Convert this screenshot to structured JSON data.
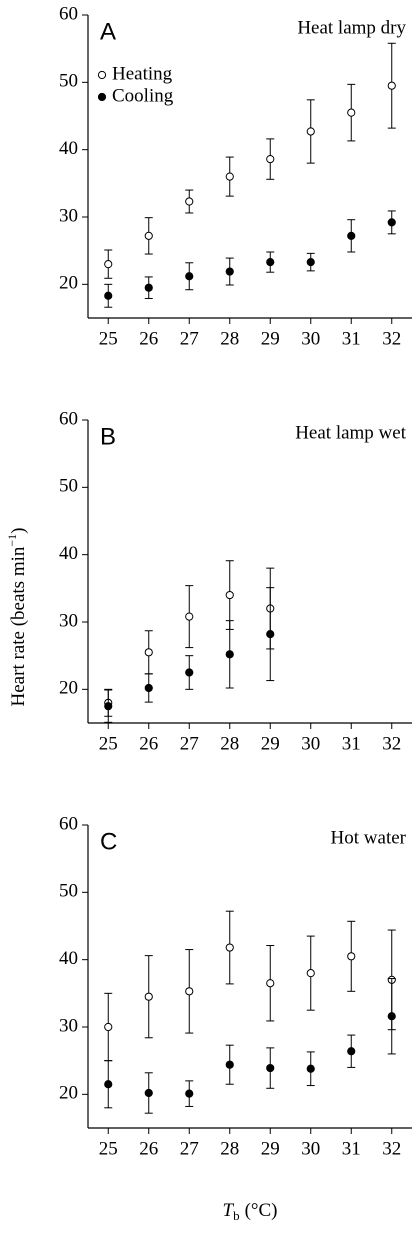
{
  "chart_data": [
    {
      "type": "scatter",
      "panel": "A",
      "title": "Heat lamp dry",
      "x": [
        25,
        26,
        27,
        28,
        29,
        30,
        31,
        32
      ],
      "xlim": [
        24.5,
        32.5
      ],
      "xticks": [
        25,
        26,
        27,
        28,
        29,
        30,
        31,
        32
      ],
      "ylim": [
        15,
        60
      ],
      "yticks": [
        20,
        30,
        40,
        50,
        60
      ],
      "legend": "upper left",
      "series": [
        {
          "name": "Heating",
          "marker": "open",
          "color": "#000000",
          "values": [
            23.0,
            27.2,
            32.3,
            36.0,
            38.6,
            42.7,
            45.5,
            49.5
          ],
          "errors": [
            2.1,
            2.7,
            1.7,
            2.9,
            3.0,
            4.7,
            4.2,
            6.3
          ]
        },
        {
          "name": "Cooling",
          "marker": "filled",
          "color": "#000000",
          "values": [
            18.3,
            19.5,
            21.2,
            21.9,
            23.3,
            23.3,
            27.2,
            29.2
          ],
          "errors": [
            1.7,
            1.6,
            2.0,
            2.0,
            1.5,
            1.3,
            2.4,
            1.7
          ]
        }
      ]
    },
    {
      "type": "scatter",
      "panel": "B",
      "title": "Heat lamp wet",
      "ylabel": {
        "text": "Heart rate (beats min",
        "superscript": "−1",
        "close": ")"
      },
      "x": [
        25,
        26,
        27,
        28,
        29,
        30,
        31,
        32
      ],
      "xlim": [
        24.5,
        32.5
      ],
      "xticks": [
        25,
        26,
        27,
        28,
        29,
        30,
        31,
        32
      ],
      "ylim": [
        15,
        60
      ],
      "yticks": [
        20,
        30,
        40,
        50,
        60
      ],
      "series": [
        {
          "marker": "open",
          "color": "#000000",
          "values": [
            18.0,
            25.5,
            30.8,
            34.0,
            32.0,
            null,
            null,
            null
          ],
          "errors": [
            2.0,
            3.2,
            4.6,
            5.1,
            6.0,
            null,
            null,
            null
          ]
        },
        {
          "marker": "filled",
          "color": "#000000",
          "values": [
            17.5,
            20.2,
            22.5,
            25.2,
            28.2,
            null,
            null,
            null
          ],
          "errors": [
            2.4,
            2.1,
            2.5,
            5.0,
            6.9,
            null,
            null,
            null
          ]
        }
      ]
    },
    {
      "type": "scatter",
      "panel": "C",
      "title": "Hot water",
      "xlabel": {
        "symbol": "T",
        "subscript": "b",
        "unit": "(°C)"
      },
      "x": [
        25,
        26,
        27,
        28,
        29,
        30,
        31,
        32
      ],
      "xlim": [
        24.5,
        32.5
      ],
      "xticks": [
        25,
        26,
        27,
        28,
        29,
        30,
        31,
        32
      ],
      "ylim": [
        15,
        60
      ],
      "yticks": [
        20,
        30,
        40,
        50,
        60
      ],
      "series": [
        {
          "marker": "open",
          "color": "#000000",
          "values": [
            30.0,
            34.5,
            35.3,
            41.8,
            36.5,
            38.0,
            40.5,
            37.0
          ],
          "errors": [
            5.0,
            6.1,
            6.2,
            5.4,
            5.6,
            5.5,
            5.2,
            7.4
          ]
        },
        {
          "marker": "filled",
          "color": "#000000",
          "values": [
            21.5,
            20.2,
            20.1,
            24.4,
            23.9,
            23.8,
            26.4,
            31.6
          ],
          "errors": [
            3.5,
            3.0,
            1.9,
            2.9,
            3.0,
            2.5,
            2.4,
            5.6
          ]
        }
      ]
    }
  ]
}
